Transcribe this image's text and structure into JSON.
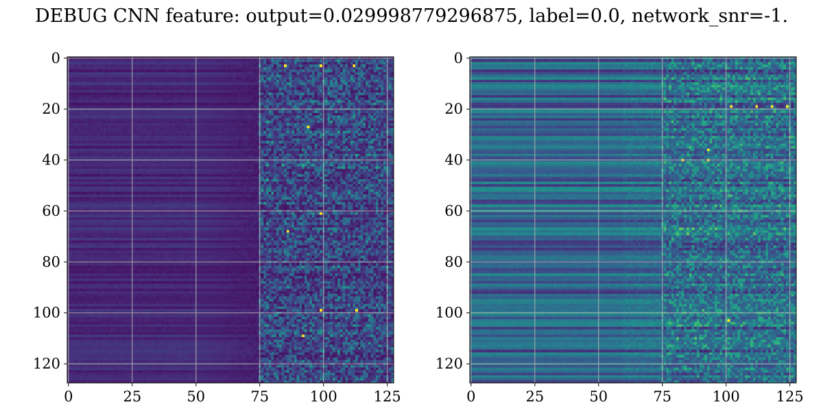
{
  "title": "DEBUG CNN feature: output=0.029998779296875, label=0.0, network_snr=-1.",
  "chart_data": [
    {
      "type": "heatmap",
      "colormap": "viridis",
      "rows": 128,
      "cols": 128,
      "xlim": [
        0,
        127
      ],
      "ylim": [
        127,
        0
      ],
      "xticks": [
        "0",
        "25",
        "50",
        "75",
        "100",
        "125"
      ],
      "yticks": [
        "0",
        "20",
        "40",
        "60",
        "80",
        "100",
        "120"
      ],
      "grid": true,
      "description": "low values (dark purple) for columns 0-75, noisy speckled higher values for columns 75-127; bright yellow pixels near (85,3),(99,61),(92,109)"
    },
    {
      "type": "heatmap",
      "colormap": "viridis",
      "rows": 128,
      "cols": 128,
      "xlim": [
        0,
        127
      ],
      "ylim": [
        127,
        0
      ],
      "xticks": [
        "0",
        "25",
        "50",
        "75",
        "100",
        "125"
      ],
      "yticks": [
        "0",
        "20",
        "40",
        "60",
        "80",
        "100",
        "120"
      ],
      "grid": true,
      "description": "horizontal teal/blue banding across rows with brighter green speckle for columns 75-127; bright pixels near (112,19),(83,40),(101,103)"
    }
  ],
  "colors": {
    "grid": "#b0b0b0",
    "axis": "#000000",
    "background": "#ffffff"
  }
}
